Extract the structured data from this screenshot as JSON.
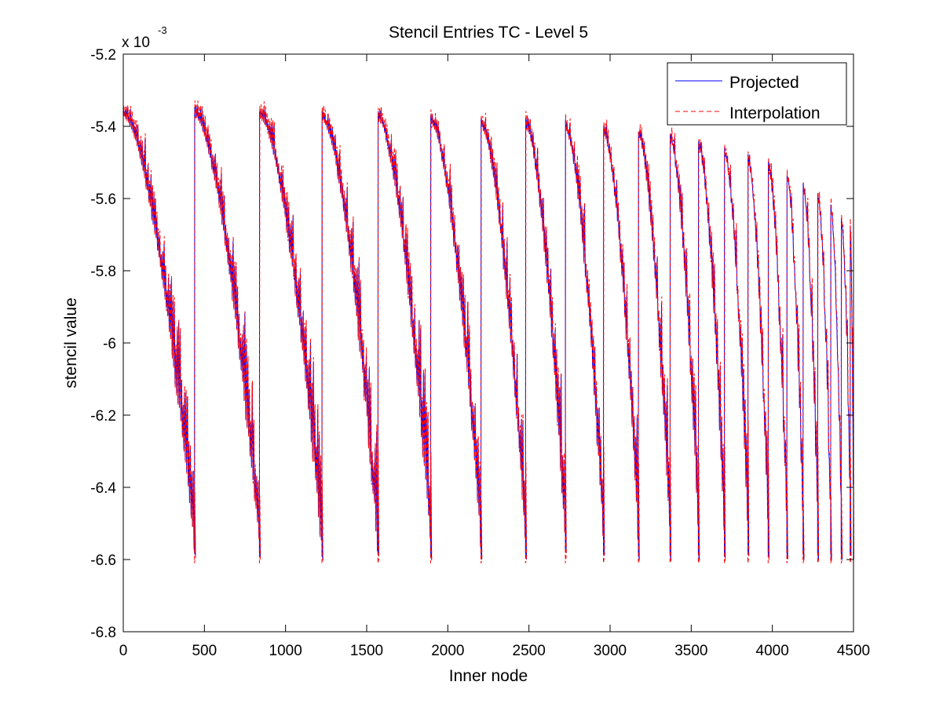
{
  "chart_data": {
    "type": "line",
    "title": "Stencil Entries TC - Level 5",
    "xlabel": "Inner node",
    "ylabel": "stencil value",
    "y_multiplier": {
      "base": "x 10",
      "exponent": "-3"
    },
    "xlim": [
      0,
      4500
    ],
    "ylim": [
      -6.8,
      -5.2
    ],
    "x_ticks": [
      "0",
      "500",
      "1000",
      "1500",
      "2000",
      "2500",
      "3000",
      "3500",
      "4000",
      "4500"
    ],
    "y_ticks": [
      "-5.2",
      "-5.4",
      "-5.6",
      "-5.8",
      "-6",
      "-6.2",
      "-6.4",
      "-6.6",
      "-6.8"
    ],
    "x_tick_values": [
      0,
      500,
      1000,
      1500,
      2000,
      2500,
      3000,
      3500,
      4000,
      4500
    ],
    "y_tick_values": [
      -5.2,
      -5.4,
      -5.6,
      -5.8,
      -6.0,
      -6.2,
      -6.4,
      -6.6,
      -6.8
    ],
    "legend_position": "top-right",
    "grid": false,
    "segment_start_x": [
      0,
      440,
      840,
      1225,
      1570,
      1895,
      2205,
      2480,
      2725,
      2960,
      3175,
      3370,
      3545,
      3705,
      3850,
      3975,
      4090,
      4190,
      4280,
      4360,
      4425,
      4480
    ],
    "segment_start_y": [
      -5.37,
      -5.37,
      -5.37,
      -5.38,
      -5.38,
      -5.39,
      -5.4,
      -5.4,
      -5.41,
      -5.42,
      -5.43,
      -5.44,
      -5.46,
      -5.48,
      -5.5,
      -5.52,
      -5.55,
      -5.58,
      -5.61,
      -5.64,
      -5.67,
      -5.7
    ],
    "segment_min_y": -6.6,
    "series": [
      {
        "name": "Projected",
        "color": "#0000ff",
        "line_style": "solid"
      },
      {
        "name": "Interpolation",
        "color": "#ff0000",
        "line_style": "dashed"
      }
    ]
  }
}
